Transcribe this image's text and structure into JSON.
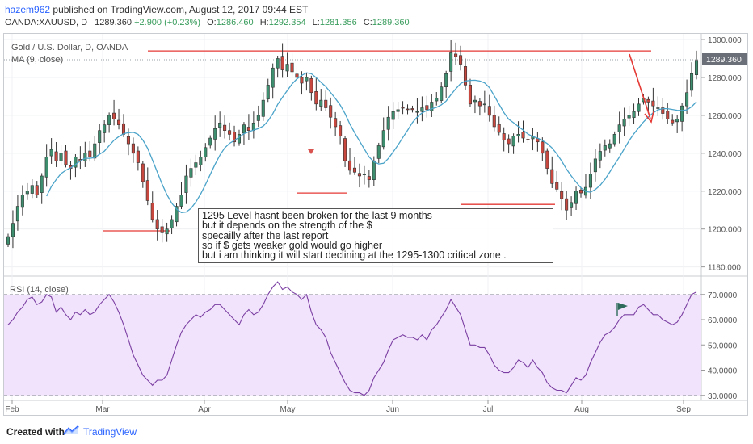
{
  "header": {
    "author": "hazem962",
    "published_text": "published on TradingView.com, August 12, 2017 09:44 EST",
    "symbol": "OANDA:XAUUSD, D",
    "last": "1289.360",
    "change": "+2.900 (+0.23%)",
    "o_label": "O:",
    "o_value": "1286.460",
    "h_label": "H:",
    "h_value": "1292.354",
    "l_label": "L:",
    "l_value": "1281.356",
    "c_label": "C:",
    "c_value": "1289.360"
  },
  "main_pane": {
    "title": "Gold / U.S. Dollar, D, OANDA",
    "ma_label": "MA (9, close)",
    "price_badge": "1289.360"
  },
  "rsi_pane": {
    "label": "RSI (14, close)"
  },
  "annotation": {
    "lines": [
      "1295 Level hasnt been broken for the last 9 months",
      "but it depends on the strength of the $",
      "specailly after the last report",
      "so if $ gets weaker gold would go higher",
      "but i am thinking it will start declining at the 1295-1300 critical zone ."
    ]
  },
  "footer": {
    "created_with": "Created with",
    "brand": "TradingView"
  },
  "colors": {
    "up": "#3d8f6f",
    "down": "#c8473f",
    "ma": "#4aa3c9",
    "rsi": "#7b3fa3",
    "rsi_band": "#f1e3fb",
    "level": "#e53935",
    "arrow": "#e53935"
  },
  "chart_data": [
    {
      "type": "candlestick",
      "title": "Gold / U.S. Dollar, D, OANDA",
      "y_ticks": [
        "1300.000",
        "1280.000",
        "1260.000",
        "1240.000",
        "1220.000",
        "1200.000",
        "1180.000"
      ],
      "x_ticks": [
        "Feb",
        "Mar",
        "Apr",
        "May",
        "Jun",
        "Jul",
        "Aug",
        "Sep"
      ],
      "ylim": [
        1176,
        1303
      ],
      "closes": [
        1196,
        1203,
        1212,
        1218,
        1220,
        1223,
        1218,
        1228,
        1238,
        1242,
        1236,
        1240,
        1234,
        1232,
        1238,
        1236,
        1240,
        1238,
        1245,
        1252,
        1255,
        1260,
        1258,
        1255,
        1250,
        1245,
        1240,
        1235,
        1225,
        1215,
        1205,
        1200,
        1198,
        1200,
        1205,
        1212,
        1218,
        1228,
        1232,
        1235,
        1238,
        1243,
        1248,
        1253,
        1256,
        1252,
        1250,
        1246,
        1250,
        1255,
        1252,
        1256,
        1260,
        1268,
        1276,
        1285,
        1290,
        1284,
        1287,
        1283,
        1280,
        1277,
        1280,
        1272,
        1266,
        1268,
        1264,
        1259,
        1254,
        1249,
        1236,
        1231,
        1230,
        1228,
        1229,
        1226,
        1236,
        1244,
        1252,
        1259,
        1262,
        1263,
        1264,
        1263,
        1263,
        1262,
        1264,
        1263,
        1267,
        1269,
        1275,
        1282,
        1293,
        1291,
        1287,
        1276,
        1266,
        1268,
        1265,
        1266,
        1260,
        1254,
        1251,
        1247,
        1245,
        1249,
        1250,
        1248,
        1247,
        1249,
        1246,
        1240,
        1232,
        1224,
        1221,
        1216,
        1210,
        1214,
        1220,
        1219,
        1222,
        1229,
        1237,
        1241,
        1244,
        1245,
        1250,
        1255,
        1258,
        1260,
        1262,
        1266,
        1269,
        1267,
        1265,
        1264,
        1261,
        1258,
        1256,
        1258,
        1265,
        1272,
        1282,
        1289
      ],
      "ma_period": 9,
      "levels": [
        1294,
        1219,
        1213,
        1199,
        1198
      ],
      "last_price": 1289.36
    },
    {
      "type": "line",
      "title": "RSI (14, close)",
      "y_ticks": [
        "70.0000",
        "60.0000",
        "50.0000",
        "40.0000",
        "30.0000"
      ],
      "ylim": [
        28,
        76
      ],
      "band": [
        30,
        70
      ],
      "values": [
        58,
        60,
        63,
        65,
        68,
        69,
        66,
        67,
        70,
        69,
        63,
        65,
        62,
        60,
        63,
        62,
        64,
        62,
        63,
        66,
        68,
        70,
        67,
        63,
        58,
        52,
        46,
        42,
        38,
        36,
        34,
        36,
        36,
        38,
        44,
        50,
        55,
        58,
        60,
        62,
        61,
        63,
        64,
        66,
        66,
        64,
        62,
        60,
        58,
        62,
        64,
        62,
        63,
        66,
        70,
        73,
        75,
        72,
        73,
        71,
        70,
        68,
        70,
        63,
        58,
        56,
        53,
        47,
        43,
        39,
        35,
        32,
        31,
        31,
        30,
        32,
        37,
        40,
        43,
        48,
        52,
        53,
        54,
        53,
        53,
        52,
        54,
        52,
        56,
        58,
        61,
        64,
        68,
        65,
        62,
        56,
        50,
        50,
        49,
        49,
        46,
        42,
        40,
        39,
        39,
        41,
        44,
        43,
        41,
        44,
        41,
        39,
        35,
        33,
        32,
        32,
        31,
        34,
        37,
        36,
        38,
        43,
        47,
        51,
        54,
        55,
        57,
        60,
        62,
        62,
        62,
        65,
        66,
        64,
        62,
        62,
        60,
        59,
        58,
        59,
        62,
        66,
        70,
        71
      ]
    }
  ]
}
